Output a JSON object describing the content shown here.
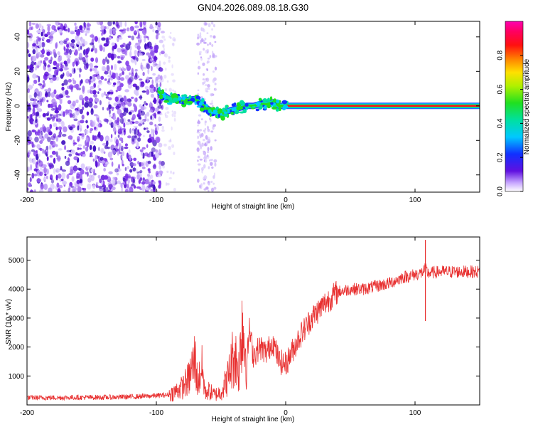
{
  "title": "GN04.2026.089.08.18.G30",
  "colors": {
    "snr_line": "#e83030",
    "axis": "#000000",
    "scatter": "#6a1fd0",
    "background": "#ffffff"
  },
  "chart_data": [
    {
      "type": "heatmap",
      "title": "",
      "xlabel": "Height of straight line (km)",
      "ylabel": "Frequency (Hz)",
      "xlim": [
        -200,
        150
      ],
      "ylim": [
        -50,
        49
      ],
      "xticks": [
        -200,
        -100,
        0,
        100
      ],
      "xtick_labels": [
        "-200",
        "-100",
        "0",
        "100"
      ],
      "yticks": [
        -40,
        -20,
        0,
        20,
        40
      ],
      "ytick_labels": [
        "-40",
        "-20",
        "0",
        "20",
        "40"
      ],
      "ridge": {
        "description": "Main spectral peak tracked vs height",
        "x": [
          -98,
          -90,
          -80,
          -70,
          -60,
          -50,
          -45,
          -40,
          -35,
          -30,
          -25,
          -20,
          -15,
          -10,
          -5,
          0,
          10,
          50,
          100,
          150
        ],
        "y": [
          8,
          4,
          3,
          4,
          -2,
          -5,
          -3,
          -2,
          -1,
          0,
          0,
          1,
          1,
          2,
          0,
          0,
          0,
          0,
          0,
          0
        ]
      },
      "colorbar": {
        "label": "Normalized spectral amplitude",
        "range": [
          0.0,
          1.0
        ],
        "ticks": [
          0.0,
          0.2,
          0.4,
          0.6,
          0.8
        ],
        "tick_labels": [
          "0.0",
          "0.2",
          "0.4",
          "0.6",
          "0.8"
        ]
      }
    },
    {
      "type": "line",
      "title": "",
      "xlabel": "Height of straight line (km)",
      "ylabel": "SNR (10 * v/v)",
      "xlim": [
        -200,
        150
      ],
      "ylim": [
        0,
        5800
      ],
      "xticks": [
        -200,
        -100,
        0,
        100
      ],
      "xtick_labels": [
        "-200",
        "-100",
        "0",
        "100"
      ],
      "yticks": [
        1000,
        2000,
        3000,
        4000,
        5000
      ],
      "ytick_labels": [
        "1000",
        "2000",
        "3000",
        "4000",
        "5000"
      ],
      "series": [
        {
          "name": "SNR",
          "x": [
            -200,
            -180,
            -160,
            -140,
            -120,
            -100,
            -90,
            -80,
            -75,
            -70,
            -68,
            -65,
            -62,
            -60,
            -55,
            -50,
            -45,
            -40,
            -36,
            -34,
            -30,
            -28,
            -25,
            -20,
            -15,
            -10,
            -5,
            0,
            10,
            20,
            30,
            40,
            50,
            60,
            70,
            80,
            90,
            100,
            105,
            108,
            110,
            120,
            130,
            150
          ],
          "values": [
            250,
            250,
            260,
            260,
            280,
            320,
            350,
            600,
            900,
            1600,
            700,
            1300,
            400,
            500,
            350,
            450,
            900,
            1800,
            1200,
            3000,
            1500,
            2600,
            1700,
            2000,
            1800,
            2200,
            1500,
            1400,
            2300,
            3000,
            3500,
            3900,
            4000,
            4000,
            4100,
            4200,
            4400,
            4500,
            4550,
            4700,
            4550,
            4600,
            4600,
            4600
          ]
        }
      ],
      "annotations": [
        {
          "x": 108,
          "value": 5700,
          "note": "spike max"
        },
        {
          "x": 108,
          "value": 2900,
          "note": "spike min"
        }
      ]
    }
  ]
}
